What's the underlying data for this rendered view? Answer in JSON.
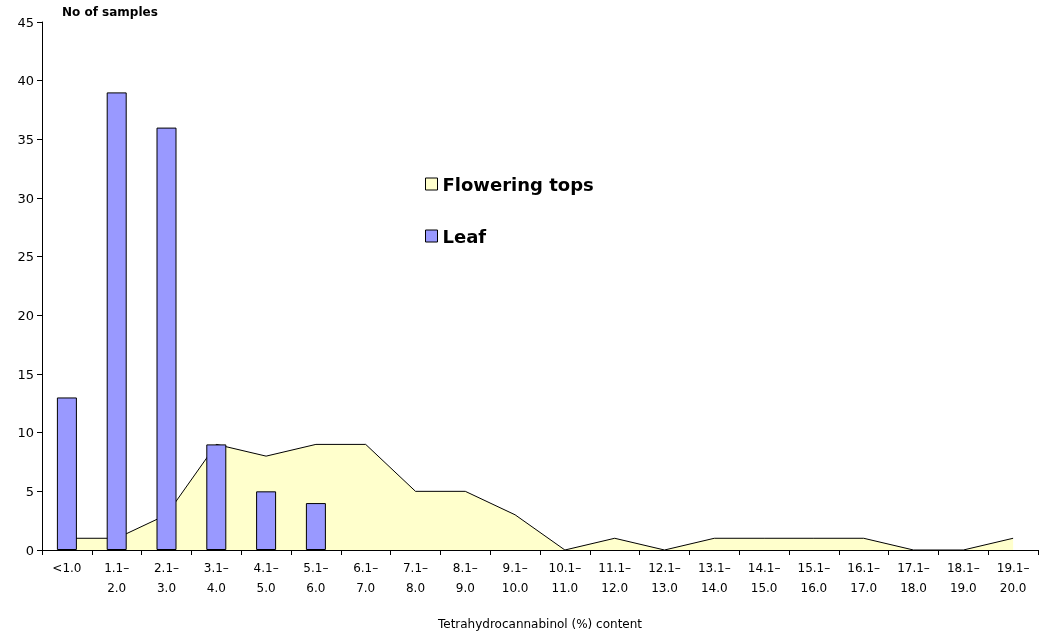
{
  "chart_data": {
    "type": "bar",
    "ylabel": "No of samples",
    "xlabel": "Tetrahydrocannabinol (%) content",
    "categories": [
      "<1.0",
      "1.1–2.0",
      "2.1–3.0",
      "3.1–4.0",
      "4.1–5.0",
      "5.1–6.0",
      "6.1–7.0",
      "7.1–8.0",
      "8.1–9.0",
      "9.1–10.0",
      "10.1–11.0",
      "11.1–12.0",
      "12.1–13.0",
      "13.1–14.0",
      "14.1–15.0",
      "15.1–16.0",
      "16.1–17.0",
      "17.1–18.0",
      "18.1–19.0",
      "19.1–20.0"
    ],
    "series": [
      {
        "name": "Flowering tops",
        "type": "area",
        "color": "#ffffcc",
        "values": [
          1,
          1,
          3,
          9,
          8,
          9,
          9,
          5,
          5,
          3,
          0,
          1,
          0,
          1,
          1,
          1,
          1,
          0,
          0,
          1
        ]
      },
      {
        "name": "Leaf",
        "color": "#9999ff",
        "values": [
          13,
          39,
          36,
          9,
          5,
          4,
          null,
          null,
          null,
          null,
          null,
          null,
          null,
          null,
          null,
          null,
          null,
          null,
          null,
          null
        ]
      }
    ],
    "ylim": [
      0,
      45
    ],
    "yticks": [
      0,
      5,
      10,
      15,
      20,
      25,
      30,
      35,
      40,
      45
    ],
    "grid": false,
    "legend": "top"
  }
}
